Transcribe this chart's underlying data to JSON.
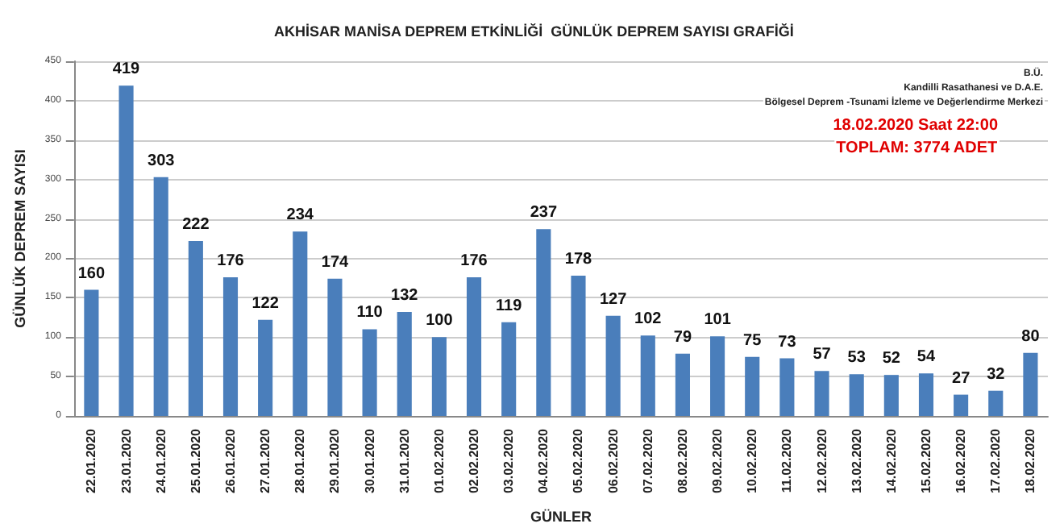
{
  "chart_data": {
    "type": "bar",
    "title": "AKHİSAR MANİSA DEPREM ETKİNLİĞİ  GÜNLÜK DEPREM SAYISI GRAFİĞİ",
    "xlabel": "GÜNLER",
    "ylabel": "GÜNLÜK DEPREM SAYISI",
    "annotations": [
      "B.Ü.",
      "Kandilli Rasathanesi ve D.A.E.",
      "Bölgesel Deprem -Tsunami İzleme ve Değerlendirme Merkezi",
      "18.02.2020 Saat 22:00",
      "TOPLAM: 3774 ADET"
    ],
    "categories": [
      "22.01.2020",
      "23.01.2020",
      "24.01.2020",
      "25.01.2020",
      "26.01.2020",
      "27.01.2020",
      "28.01.2020",
      "29.01.2020",
      "30.01.2020",
      "31.01.2020",
      "01.02.2020",
      "02.02.2020",
      "03.02.2020",
      "04.02.2020",
      "05.02.2020",
      "06.02.2020",
      "07.02.2020",
      "08.02.2020",
      "09.02.2020",
      "10.02.2020",
      "11.02.2020",
      "12.02.2020",
      "13.02.2020",
      "14.02.2020",
      "15.02.2020",
      "16.02.2020",
      "17.02.2020",
      "18.02.2020"
    ],
    "values": [
      160,
      419,
      303,
      222,
      176,
      122,
      234,
      174,
      110,
      132,
      100,
      176,
      119,
      237,
      178,
      127,
      102,
      79,
      101,
      75,
      73,
      57,
      53,
      52,
      54,
      27,
      32,
      80
    ],
    "color": "#4a7ebb",
    "ylim": [
      0,
      450
    ],
    "yticks": [
      0,
      50,
      100,
      150,
      200,
      250,
      300,
      350,
      400,
      450
    ],
    "grid": "y",
    "data_labels": true
  }
}
